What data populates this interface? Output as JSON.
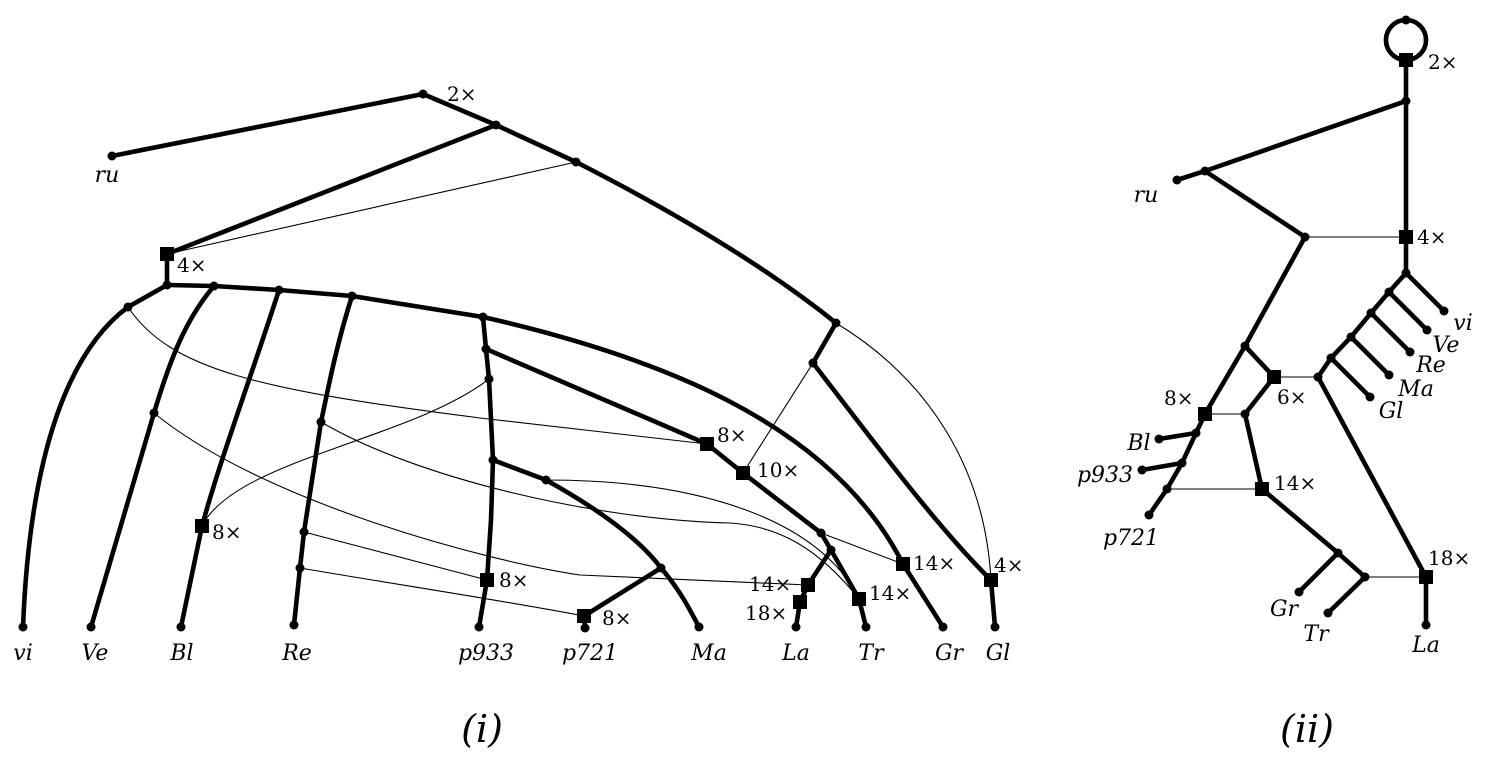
{
  "panels": [
    {
      "caption": "(i)",
      "leaves": [
        "ru",
        "vi",
        "Ve",
        "Bl",
        "Re",
        "p933",
        "p721",
        "Ma",
        "La",
        "Tr",
        "Gr",
        "Gl"
      ],
      "multiplicities": [
        "2×",
        "4×",
        "8×",
        "8×",
        "10×",
        "8×",
        "8×",
        "14×",
        "18×",
        "14×",
        "14×",
        "4×"
      ]
    },
    {
      "caption": "(ii)",
      "leaves": [
        "ru",
        "vi",
        "Ve",
        "Re",
        "Ma",
        "Gl",
        "Bl",
        "p933",
        "p721",
        "Gr",
        "Tr",
        "La"
      ],
      "multiplicities": [
        "2×",
        "4×",
        "8×",
        "6×",
        "14×",
        "18×"
      ]
    }
  ]
}
